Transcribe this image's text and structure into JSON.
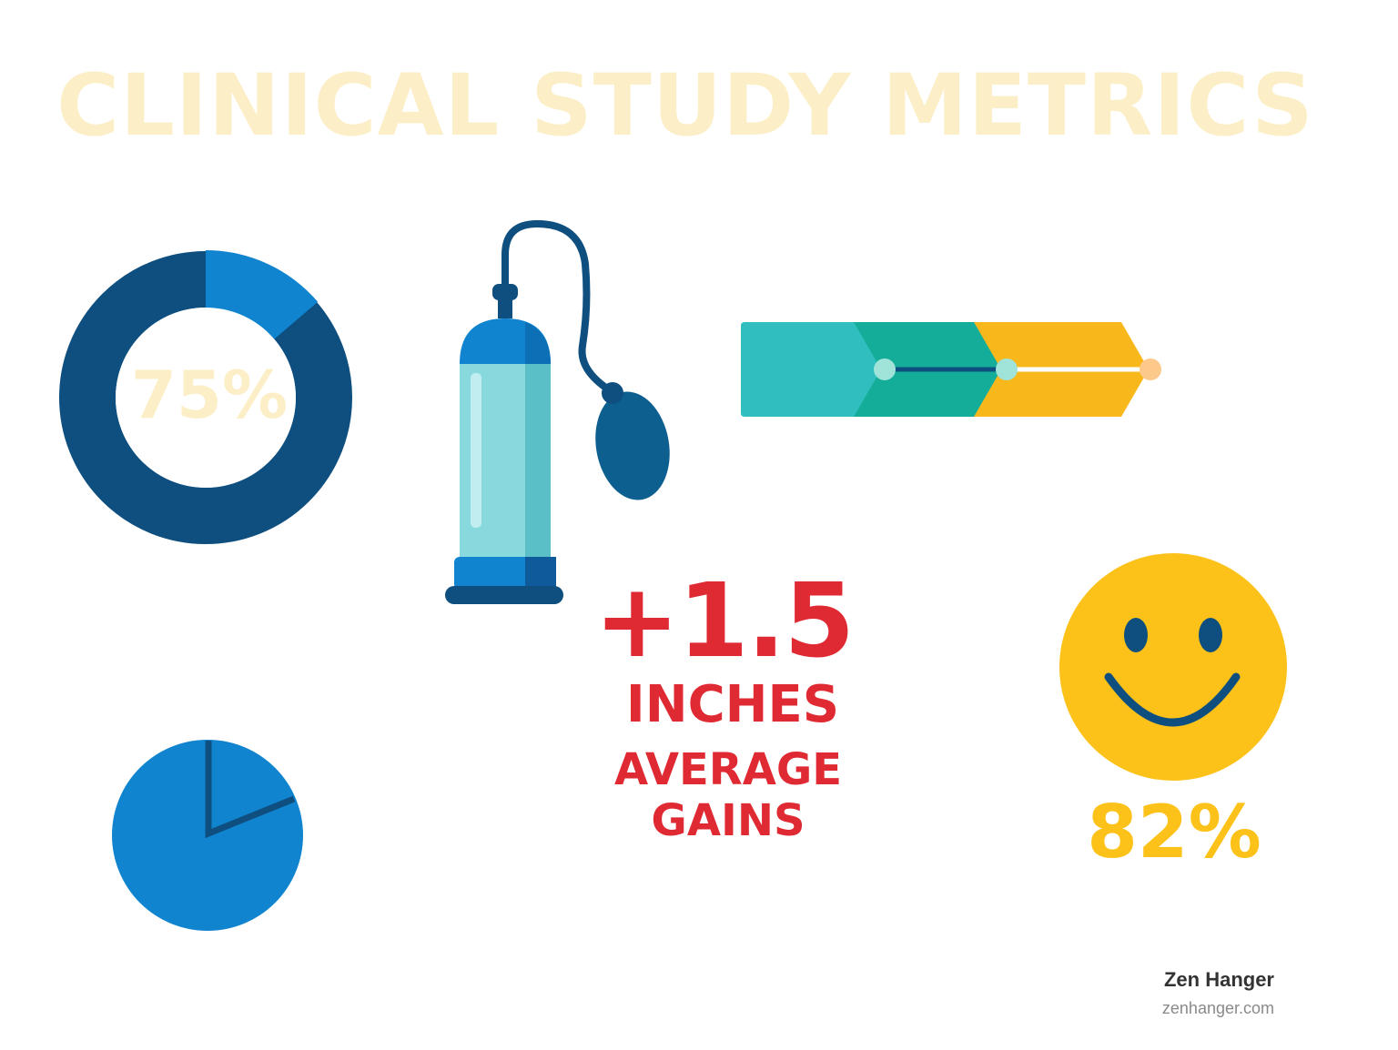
{
  "title": "CLINICAL STUDY METRICS",
  "donut": {
    "label": "75%",
    "value": 0.75
  },
  "pie": {
    "value": 0.82
  },
  "gain": {
    "value": "+1.5",
    "unit": "INCHES",
    "desc_line1": "AVERAGE",
    "desc_line2": "GAINS"
  },
  "satisfaction": {
    "label": "82%"
  },
  "brand": {
    "name": "Zen Hanger",
    "url": "zenhanger.com"
  },
  "colors": {
    "title": "#fcefc8",
    "donut_dark": "#0e4f80",
    "donut_light": "#1184d0",
    "pie_blue": "#1184d0",
    "pie_line": "#0e4f80",
    "gain_red": "#e02a33",
    "smile_yellow": "#fcc21a",
    "smile_features": "#0e4f80",
    "arrow_teal": "#30bfbe",
    "arrow_green": "#13ad99",
    "arrow_yellow": "#f8b81c"
  },
  "icons": {
    "donut": "donut-chart-icon",
    "pump": "vacuum-pump-icon",
    "arrow": "progress-arrow-icon",
    "pie": "pie-chart-icon",
    "smiley": "smiley-face-icon"
  }
}
